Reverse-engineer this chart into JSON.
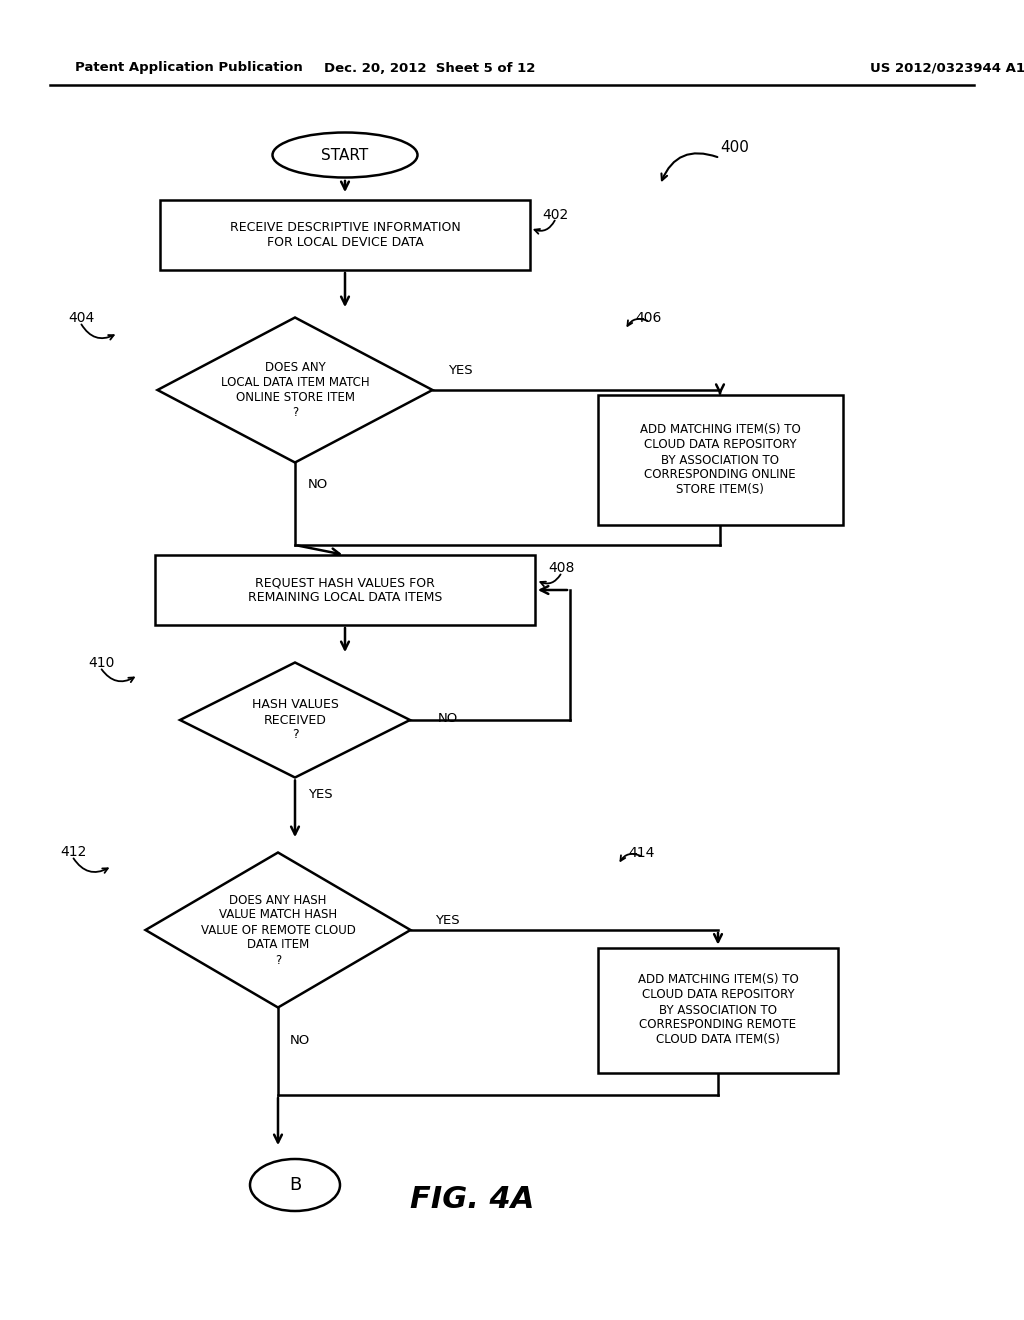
{
  "bg_color": "#ffffff",
  "header_left": "Patent Application Publication",
  "header_mid": "Dec. 20, 2012  Sheet 5 of 12",
  "header_right": "US 2012/0323944 A1",
  "fig_label": "FIG. 4A",
  "fig_number": "400"
}
